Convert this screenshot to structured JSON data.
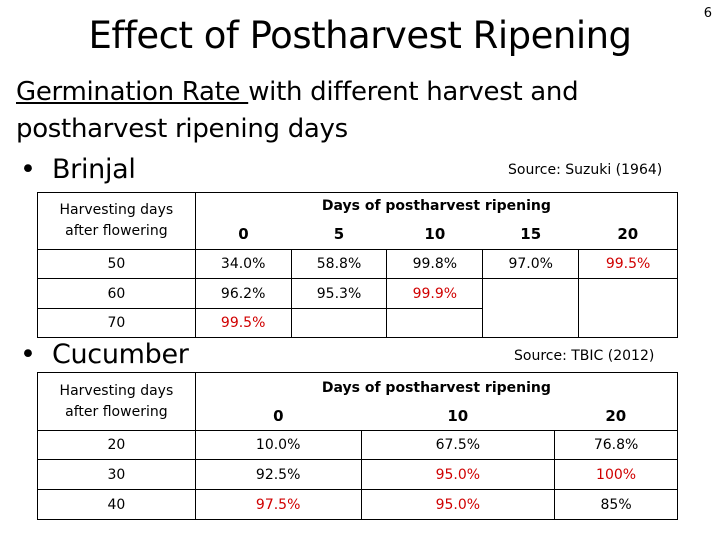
{
  "page_number": "6",
  "title": "Effect of Postharvest Ripening",
  "subtitle": {
    "underlined": "Germination Rate ",
    "rest_line1": "with different harvest and",
    "line2": "postharvest ripening days"
  },
  "brinjal": {
    "bullet": "•",
    "label": "Brinjal",
    "source": "Source: Suzuki (1964)",
    "row_header": [
      "Harvesting days",
      "after flowering"
    ],
    "group_header": "Days of postharvest ripening",
    "columns": [
      "0",
      "5",
      "10",
      "15",
      "20"
    ],
    "rows": [
      {
        "label": "50",
        "cells": [
          {
            "v": "34.0%",
            "red": false
          },
          {
            "v": "58.8%",
            "red": false
          },
          {
            "v": "99.8%",
            "red": false
          },
          {
            "v": "97.0%",
            "red": false
          },
          {
            "v": "99.5%",
            "red": true
          }
        ]
      },
      {
        "label": "60",
        "cells": [
          {
            "v": "96.2%",
            "red": false
          },
          {
            "v": "95.3%",
            "red": false
          },
          {
            "v": "99.9%",
            "red": true
          },
          {
            "v": "",
            "red": false
          },
          {
            "v": "",
            "red": false
          }
        ]
      },
      {
        "label": "70",
        "cells": [
          {
            "v": "99.5%",
            "red": true
          },
          {
            "v": "",
            "red": false
          },
          {
            "v": "",
            "red": false
          },
          {
            "v": "",
            "red": false
          },
          {
            "v": "",
            "red": false
          }
        ]
      }
    ]
  },
  "cucumber": {
    "bullet": "•",
    "label": "Cucumber",
    "source": "Source: TBIC (2012)",
    "row_header": [
      "Harvesting days",
      "after flowering"
    ],
    "group_header": "Days of postharvest ripening",
    "columns": [
      "0",
      "10",
      "20"
    ],
    "rows": [
      {
        "label": "20",
        "cells": [
          {
            "v": "10.0%",
            "red": false
          },
          {
            "v": "67.5%",
            "red": false
          },
          {
            "v": "76.8%",
            "red": false
          }
        ]
      },
      {
        "label": "30",
        "cells": [
          {
            "v": "92.5%",
            "red": false
          },
          {
            "v": "95.0%",
            "red": true
          },
          {
            "v": "100%",
            "red": true
          }
        ]
      },
      {
        "label": "40",
        "cells": [
          {
            "v": "97.5%",
            "red": true
          },
          {
            "v": "95.0%",
            "red": true
          },
          {
            "v": "85%",
            "red": false
          }
        ]
      }
    ]
  },
  "colors": {
    "highlight": "#d00000",
    "text": "#000000"
  }
}
